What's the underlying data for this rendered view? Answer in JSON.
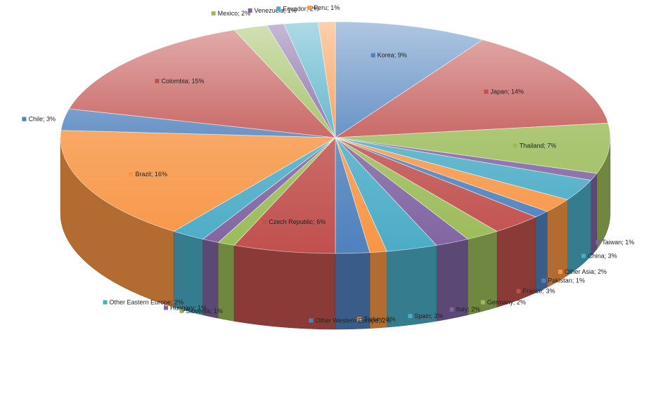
{
  "chart_data": {
    "type": "pie",
    "title": "",
    "legend": "none",
    "slices": [
      {
        "name": "Korea",
        "label": "Korea; 9%",
        "value": 9,
        "color": "#4f81bd"
      },
      {
        "name": "Japan",
        "label": "Japan; 14%",
        "value": 14,
        "color": "#c0504d"
      },
      {
        "name": "Thailand",
        "label": "Thailand; 7%",
        "value": 7,
        "color": "#9bbb59"
      },
      {
        "name": "Taiwan",
        "label": "Taiwan; 1%",
        "value": 1,
        "color": "#8064a2"
      },
      {
        "name": "China",
        "label": "China; 3%",
        "value": 3,
        "color": "#4bacc6"
      },
      {
        "name": "Other Asia",
        "label": "Other Asia; 2%",
        "value": 2,
        "color": "#f79646"
      },
      {
        "name": "Pakistan",
        "label": "Pakistan; 1%",
        "value": 1,
        "color": "#4f81bd"
      },
      {
        "name": "France",
        "label": "France; 3%",
        "value": 3,
        "color": "#c0504d"
      },
      {
        "name": "Germany",
        "label": "Germany; 2%",
        "value": 2,
        "color": "#9bbb59"
      },
      {
        "name": "Italy",
        "label": "Italy; 2%",
        "value": 2,
        "color": "#8064a2"
      },
      {
        "name": "Spain",
        "label": "Spain; 3%",
        "value": 3,
        "color": "#4bacc6"
      },
      {
        "name": "Turkey",
        "label": "Turkey; 1%",
        "value": 1,
        "color": "#f79646"
      },
      {
        "name": "Other Western Europe",
        "label": "Other Western Europe; 2%",
        "value": 2,
        "color": "#4f81bd"
      },
      {
        "name": "Czech Republic",
        "label": "Czech Republic; 6%",
        "value": 6,
        "color": "#c0504d"
      },
      {
        "name": "Slovenia",
        "label": "Slovenia; 1%",
        "value": 1,
        "color": "#9bbb59"
      },
      {
        "name": "Hungary",
        "label": "Hungary; 1%",
        "value": 1,
        "color": "#8064a2"
      },
      {
        "name": "Other Eastern Europe",
        "label": "Other Eastern Europe; 2%",
        "value": 2,
        "color": "#4bacc6"
      },
      {
        "name": "Brazil",
        "label": "Brazil; 16%",
        "value": 16,
        "color": "#f79646"
      },
      {
        "name": "Chile",
        "label": "Chile; 3%",
        "value": 3,
        "color": "#4f81bd"
      },
      {
        "name": "Colombia",
        "label": "Colombia; 15%",
        "value": 15,
        "color": "#c0504d"
      },
      {
        "name": "Mexico",
        "label": "Mexico; 2%",
        "value": 2,
        "color": "#9bbb59"
      },
      {
        "name": "Venezuela",
        "label": "Venezuela; 1%",
        "value": 1,
        "color": "#8064a2"
      },
      {
        "name": "Ecuador",
        "label": "Ecuador; 2%",
        "value": 2,
        "color": "#4bacc6"
      },
      {
        "name": "Peru",
        "label": "Peru; 1%",
        "value": 1,
        "color": "#f79646"
      }
    ]
  }
}
